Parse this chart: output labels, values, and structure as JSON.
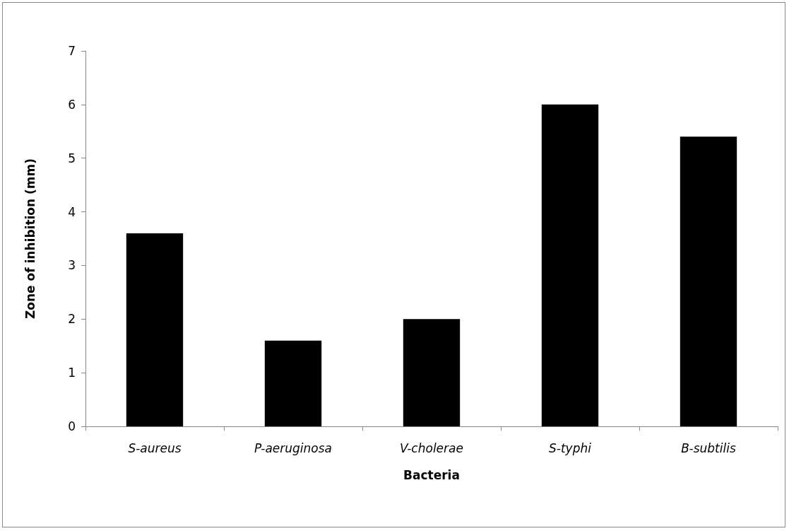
{
  "chart_data": {
    "type": "bar",
    "xlabel": "Bacteria",
    "ylabel": "Zone of inhibition (mm)",
    "categories": [
      "S-aureus",
      "P-aeruginosa",
      "V-cholerae",
      "S-typhi",
      "B-subtilis"
    ],
    "values": [
      3.6,
      1.6,
      2.0,
      6.0,
      5.4
    ],
    "color": "#000000",
    "ylim": [
      0,
      7
    ],
    "yticks": [
      0,
      1,
      2,
      3,
      4,
      5,
      6,
      7
    ],
    "grid": false
  }
}
